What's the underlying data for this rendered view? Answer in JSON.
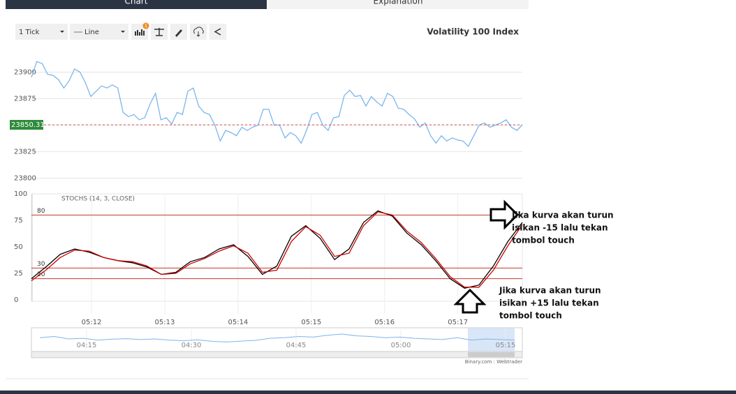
{
  "tabs": [
    "Chart",
    "Explanation"
  ],
  "toolbar": {
    "interval": "1 Tick",
    "chart_type": "Line",
    "badge": "1"
  },
  "attribution": "Binary.com : Webtrader",
  "annotations": [
    [
      "Jika kurva akan turun",
      "isikan -15 lalu tekan",
      "tombol touch"
    ],
    [
      "Jika kurva akan turun",
      "isikan +15 lalu tekan",
      "tombol touch"
    ]
  ],
  "chart_data": [
    {
      "type": "line",
      "title": "Volatility 100 Index",
      "last_value": 23850.31,
      "ylim": [
        23797,
        23922
      ],
      "yticks": [
        23800,
        23825,
        23850,
        23875,
        23900
      ],
      "grid": true,
      "series": [
        {
          "color": "#7cb5ec",
          "values": [
            23895,
            23910,
            23908,
            23898,
            23897,
            23893,
            23885,
            23892,
            23903,
            23900,
            23890,
            23877,
            23882,
            23887,
            23885,
            23888,
            23885,
            23862,
            23858,
            23860,
            23855,
            23857,
            23870,
            23880,
            23855,
            23857,
            23851,
            23862,
            23860,
            23882,
            23885,
            23868,
            23862,
            23860,
            23850,
            23835,
            23845,
            23843,
            23840,
            23848,
            23845,
            23848,
            23850,
            23865,
            23865,
            23850,
            23850,
            23838,
            23843,
            23840,
            23833,
            23845,
            23860,
            23862,
            23850,
            23845,
            23857,
            23858,
            23878,
            23883,
            23877,
            23878,
            23868,
            23877,
            23872,
            23868,
            23880,
            23877,
            23866,
            23865,
            23860,
            23856,
            23848,
            23852,
            23840,
            23833,
            23840,
            23835,
            23838,
            23836,
            23835,
            23830,
            23840,
            23850,
            23852,
            23848,
            23850,
            23852,
            23855,
            23848,
            23845,
            23850.31
          ]
        }
      ]
    },
    {
      "type": "line",
      "title": "STOCHS (14, 3, CLOSE)",
      "ylim": [
        0,
        100
      ],
      "yticks": [
        0,
        25,
        50,
        75,
        100
      ],
      "levels": [
        80,
        30,
        20
      ],
      "xlim": [
        11.18,
        17.88
      ],
      "xticks": [
        {
          "value": 12,
          "label": "05:12"
        },
        {
          "value": 13,
          "label": "05:13"
        },
        {
          "value": 14,
          "label": "05:14"
        },
        {
          "value": 15,
          "label": "05:15"
        },
        {
          "value": 16,
          "label": "05:16"
        },
        {
          "value": 17,
          "label": "05:17"
        }
      ],
      "series": [
        {
          "color": "#000000",
          "values": [
            20,
            31,
            43,
            48,
            45,
            40,
            37,
            35,
            31,
            24,
            26,
            36,
            40,
            48,
            52,
            41,
            24,
            32,
            60,
            70,
            58,
            38,
            48,
            73,
            84,
            79,
            63,
            52,
            37,
            20,
            11,
            14,
            32,
            55,
            73
          ]
        },
        {
          "color": "#cc0000",
          "values": [
            18,
            28,
            40,
            47,
            46,
            40,
            37,
            36,
            32,
            24,
            25,
            34,
            39,
            46,
            51,
            44,
            26,
            28,
            55,
            69,
            61,
            41,
            44,
            70,
            83,
            80,
            65,
            54,
            39,
            22,
            12,
            12,
            28,
            51,
            71
          ]
        }
      ]
    },
    {
      "type": "line",
      "ylim": [
        23780,
        23940
      ],
      "xlim": [
        248.3,
        316.3
      ],
      "xticks": [
        {
          "value": 255,
          "label": "04:15"
        },
        {
          "value": 270,
          "label": "04:30"
        },
        {
          "value": 285,
          "label": "04:45"
        },
        {
          "value": 300,
          "label": "05:00"
        },
        {
          "value": 315,
          "label": "05:15"
        }
      ],
      "series": [
        {
          "color": "#7cb5ec",
          "values": [
            23870,
            23880,
            23860,
            23865,
            23850,
            23858,
            23862,
            23855,
            23860,
            23850,
            23845,
            23852,
            23840,
            23835,
            23842,
            23848,
            23865,
            23870,
            23880,
            23875,
            23890,
            23900,
            23885,
            23880,
            23870,
            23875,
            23865,
            23860,
            23855,
            23870,
            23850,
            23860,
            23855,
            23850
          ]
        }
      ]
    }
  ]
}
